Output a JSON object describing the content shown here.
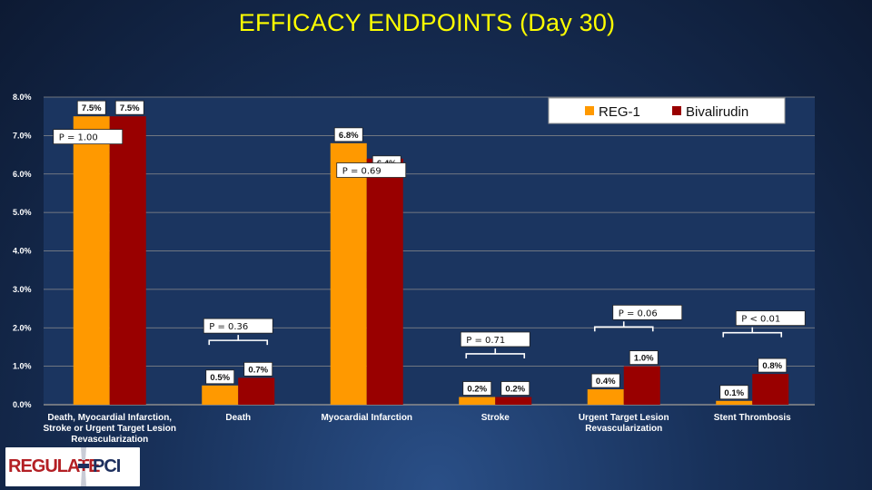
{
  "slide": {
    "title": "EFFICACY ENDPOINTS (Day 30)"
  },
  "logo": {
    "part1": "REGULATE",
    "dash": "-",
    "part2": "PCI"
  },
  "colors": {
    "reg1": "#ff9900",
    "bivalirudin": "#990000",
    "grid": "#8c8c8c",
    "plot_bg": "#1b3560"
  },
  "chart_data": {
    "type": "bar",
    "title": "EFFICACY ENDPOINTS (Day 30)",
    "categories_lines": [
      [
        "Death, Myocardial Infarction,",
        "Stroke or Urgent Target Lesion",
        "Revascularization"
      ],
      [
        "Death"
      ],
      [
        "Myocardial Infarction"
      ],
      [
        "Stroke"
      ],
      [
        "Urgent Target Lesion",
        "Revascularization"
      ],
      [
        "Stent Thrombosis"
      ]
    ],
    "series": [
      {
        "name": "REG-1",
        "color": "#ff9900",
        "values": [
          7.5,
          0.5,
          6.8,
          0.2,
          0.4,
          0.1
        ],
        "labels": [
          "7.5%",
          "0.5%",
          "6.8%",
          "0.2%",
          "0.4%",
          "0.1%"
        ]
      },
      {
        "name": "Bivalirudin",
        "color": "#990000",
        "values": [
          7.5,
          0.7,
          6.4,
          0.2,
          1.0,
          0.8
        ],
        "labels": [
          "7.5%",
          "0.7%",
          "6.4%",
          "0.2%",
          "1.0%",
          "0.8%"
        ]
      }
    ],
    "y_ticks": [
      0,
      1,
      2,
      3,
      4,
      5,
      6,
      7,
      8
    ],
    "y_tick_labels": [
      "0.0%",
      "1.0%",
      "2.0%",
      "3.0%",
      "4.0%",
      "5.0%",
      "6.0%",
      "7.0%",
      "8.0%"
    ],
    "ylim": [
      0,
      8
    ],
    "grid": true,
    "legend": "top-right",
    "p_values": [
      {
        "category": 0,
        "text": "P = 1.00",
        "bracket": false,
        "level": 6.97
      },
      {
        "category": 1,
        "text": "P = 0.36",
        "bracket": true,
        "level": 2.05
      },
      {
        "category": 2,
        "text": "P = 0.69",
        "bracket": false,
        "level": 6.1
      },
      {
        "category": 3,
        "text": "P = 0.71",
        "bracket": true,
        "level": 1.7
      },
      {
        "category": 4,
        "text": "P = 0.06",
        "bracket": true,
        "level": 2.4
      },
      {
        "category": 5,
        "text": "P < 0.01",
        "bracket": true,
        "level": 2.25
      }
    ]
  }
}
